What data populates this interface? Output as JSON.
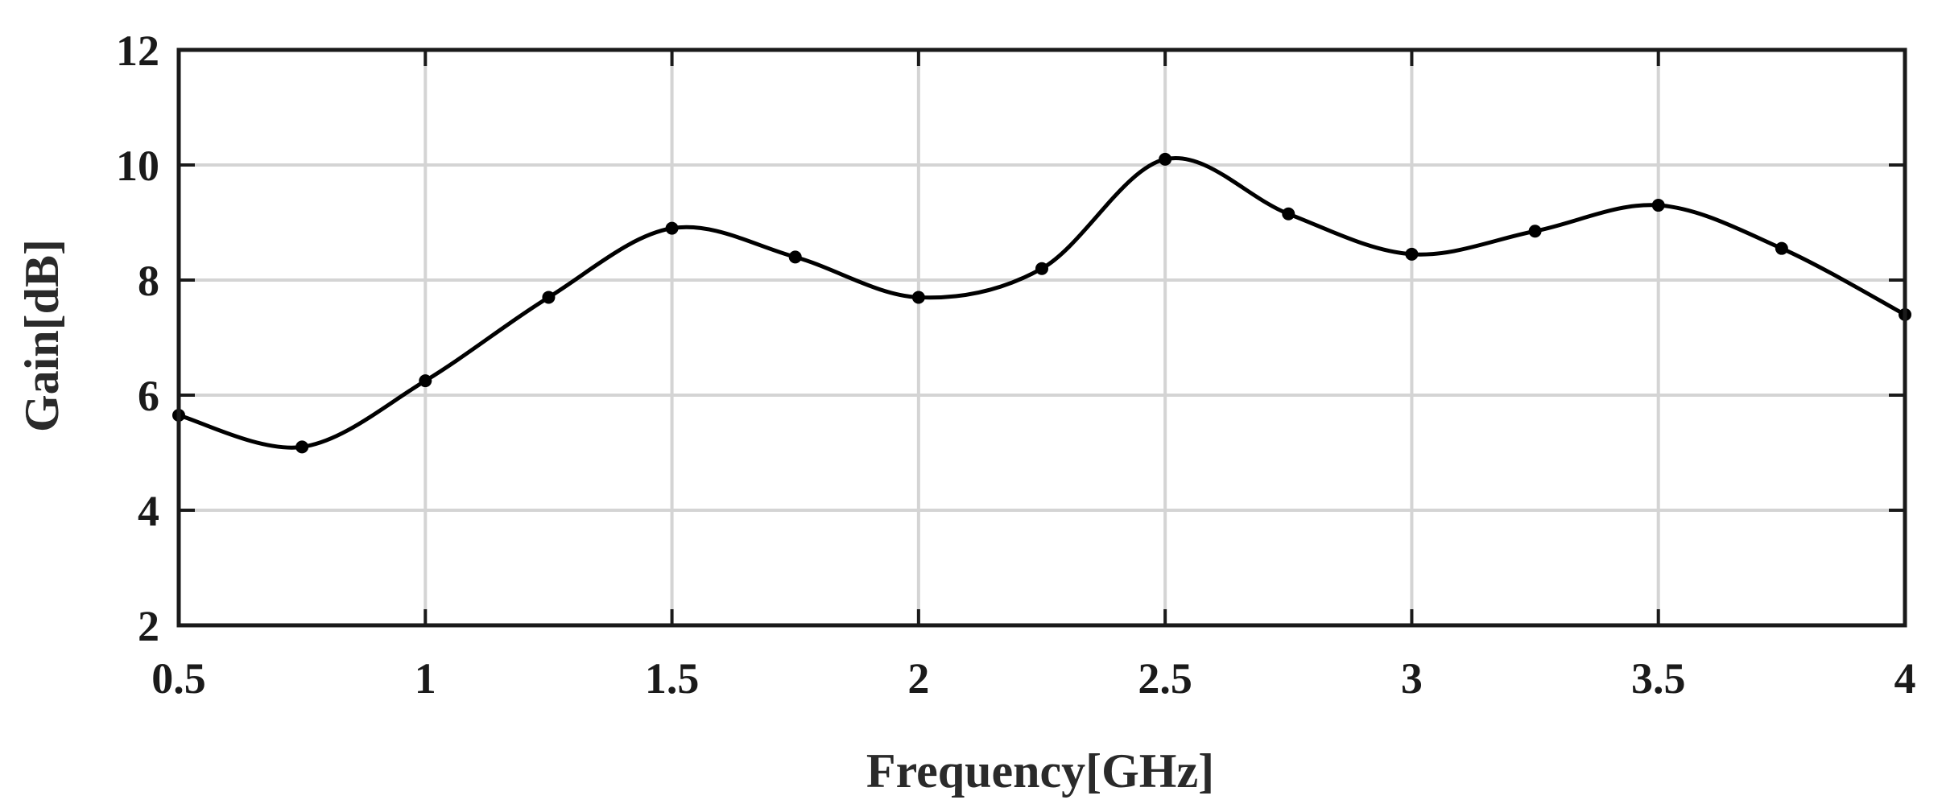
{
  "chart_data": {
    "type": "line",
    "title": "",
    "xlabel": "Frequency[GHz]",
    "ylabel": "Gain[dB]",
    "xlim": [
      0.5,
      4
    ],
    "ylim": [
      2,
      12
    ],
    "x_ticks": [
      "0.5",
      "1",
      "1.5",
      "2",
      "2.5",
      "3",
      "3.5",
      "4"
    ],
    "y_ticks": [
      "2",
      "4",
      "6",
      "8",
      "10",
      "12"
    ],
    "grid": true,
    "legend": "none",
    "series": [
      {
        "color": "#000000",
        "x": [
          0.5,
          0.75,
          1.0,
          1.25,
          1.5,
          1.75,
          2.0,
          2.25,
          2.5,
          2.75,
          3.0,
          3.25,
          3.5,
          3.75,
          4.0
        ],
        "y": [
          5.65,
          5.1,
          6.25,
          7.7,
          8.9,
          8.4,
          7.7,
          8.2,
          10.1,
          9.15,
          8.45,
          8.85,
          9.3,
          8.55,
          7.4
        ]
      }
    ]
  }
}
